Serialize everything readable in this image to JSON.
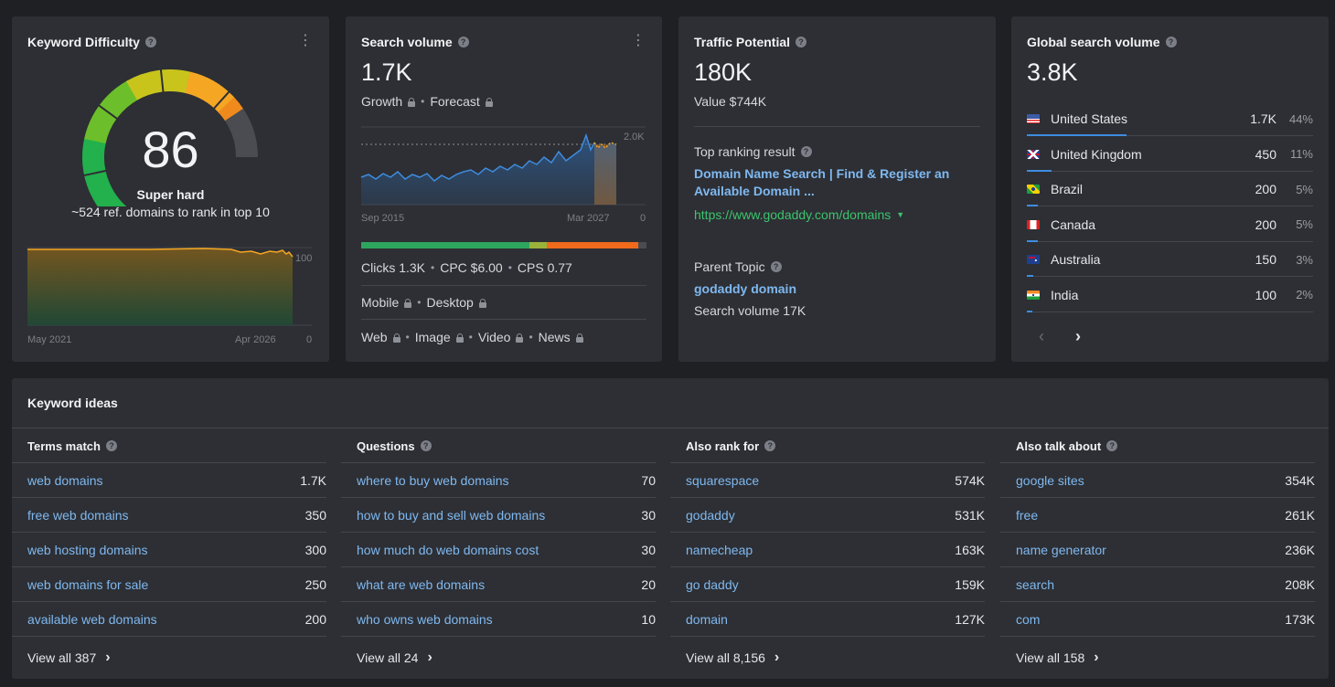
{
  "kd": {
    "title": "Keyword Difficulty",
    "value": "86",
    "level": "Super hard",
    "ref_domains": "~524 ref. domains to rank in top 10",
    "axis_start": "May 2021",
    "axis_end": "Apr 2026",
    "axis_max": "100",
    "axis_min": "0",
    "gauge_fraction": 0.86,
    "colors": {
      "low": "#22b14c",
      "mid": "#c8c41c",
      "high": "#f5a623",
      "top": "#f08a1c",
      "empty": "#4a4c52"
    }
  },
  "sv": {
    "title": "Search volume",
    "value": "1.7K",
    "growth": "Growth",
    "forecast": "Forecast",
    "axis_start": "Sep 2015",
    "axis_end": "Mar 2027",
    "axis_max": "2.0K",
    "axis_min": "0",
    "clicks": "Clicks 1.3K",
    "cpc": "CPC $6.00",
    "cps": "CPS 0.77",
    "mobile": "Mobile",
    "desktop": "Desktop",
    "web": "Web",
    "image": "Image",
    "video": "Video",
    "news": "News",
    "bar_segments": [
      {
        "fraction": 0.59,
        "color": "#2ea55f"
      },
      {
        "fraction": 0.06,
        "color": "#9ab23a"
      },
      {
        "fraction": 0.32,
        "color": "#f06a1c"
      },
      {
        "fraction": 0.03,
        "color": "#4a4c52"
      }
    ]
  },
  "tp": {
    "title": "Traffic Potential",
    "value": "180K",
    "value_label": "Value $744K",
    "top_label": "Top ranking result",
    "top_link_line1": "Domain Name Search | Find & Register an",
    "top_link_line2": "Available Domain ...",
    "url": "https://www.godaddy.com/domains",
    "parent_label": "Parent Topic",
    "parent_link": "godaddy domain",
    "parent_volume": "Search volume 17K"
  },
  "gsv": {
    "title": "Global search volume",
    "value": "3.8K",
    "countries": [
      {
        "name": "United States",
        "volume": "1.7K",
        "pct": "44%",
        "share": 0.44,
        "flag": "us"
      },
      {
        "name": "United Kingdom",
        "volume": "450",
        "pct": "11%",
        "share": 0.11,
        "flag": "uk"
      },
      {
        "name": "Brazil",
        "volume": "200",
        "pct": "5%",
        "share": 0.05,
        "flag": "br"
      },
      {
        "name": "Canada",
        "volume": "200",
        "pct": "5%",
        "share": 0.05,
        "flag": "ca"
      },
      {
        "name": "Australia",
        "volume": "150",
        "pct": "3%",
        "share": 0.03,
        "flag": "au"
      },
      {
        "name": "India",
        "volume": "100",
        "pct": "2%",
        "share": 0.02,
        "flag": "in"
      }
    ]
  },
  "ideas": {
    "title": "Keyword ideas",
    "columns": [
      {
        "title": "Terms match",
        "view_all": "View all 387",
        "rows": [
          [
            "web domains",
            "1.7K"
          ],
          [
            "free web domains",
            "350"
          ],
          [
            "web hosting domains",
            "300"
          ],
          [
            "web domains for sale",
            "250"
          ],
          [
            "available web domains",
            "200"
          ]
        ]
      },
      {
        "title": "Questions",
        "view_all": "View all 24",
        "rows": [
          [
            "where to buy web domains",
            "70"
          ],
          [
            "how to buy and sell web domains",
            "30"
          ],
          [
            "how much do web domains cost",
            "30"
          ],
          [
            "what are web domains",
            "20"
          ],
          [
            "who owns web domains",
            "10"
          ]
        ]
      },
      {
        "title": "Also rank for",
        "view_all": "View all 8,156",
        "rows": [
          [
            "squarespace",
            "574K"
          ],
          [
            "godaddy",
            "531K"
          ],
          [
            "namecheap",
            "163K"
          ],
          [
            "go daddy",
            "159K"
          ],
          [
            "domain",
            "127K"
          ]
        ]
      },
      {
        "title": "Also talk about",
        "view_all": "View all 158",
        "rows": [
          [
            "google sites",
            "354K"
          ],
          [
            "free",
            "261K"
          ],
          [
            "name generator",
            "236K"
          ],
          [
            "search",
            "208K"
          ],
          [
            "com",
            "173K"
          ]
        ]
      }
    ]
  }
}
